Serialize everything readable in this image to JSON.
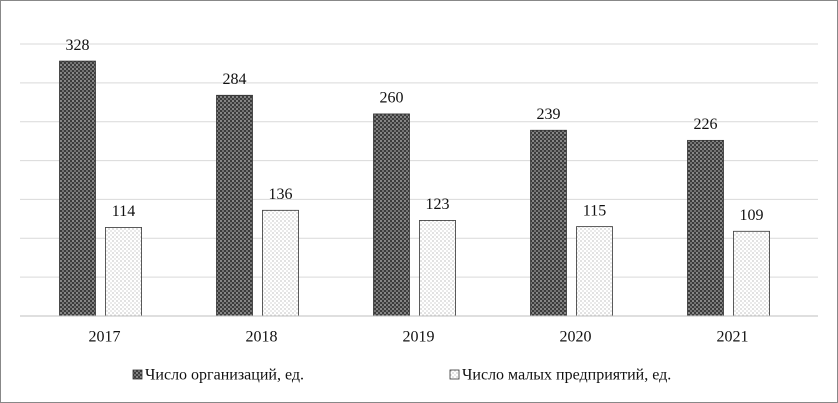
{
  "chart_data": {
    "type": "bar",
    "categories": [
      "2017",
      "2018",
      "2019",
      "2020",
      "2021"
    ],
    "series": [
      {
        "name": "Число организаций, ед.",
        "color": "#6e6e6e",
        "values": [
          328,
          284,
          260,
          239,
          226
        ]
      },
      {
        "name": "Число малых предприятий, ед.",
        "color": "#cfcfcf",
        "values": [
          114,
          136,
          123,
          115,
          109
        ]
      }
    ],
    "ylim": [
      0,
      350
    ],
    "yticks": [
      0,
      50,
      100,
      150,
      200,
      250,
      300,
      350
    ],
    "grid": true,
    "legend": "bottom"
  }
}
